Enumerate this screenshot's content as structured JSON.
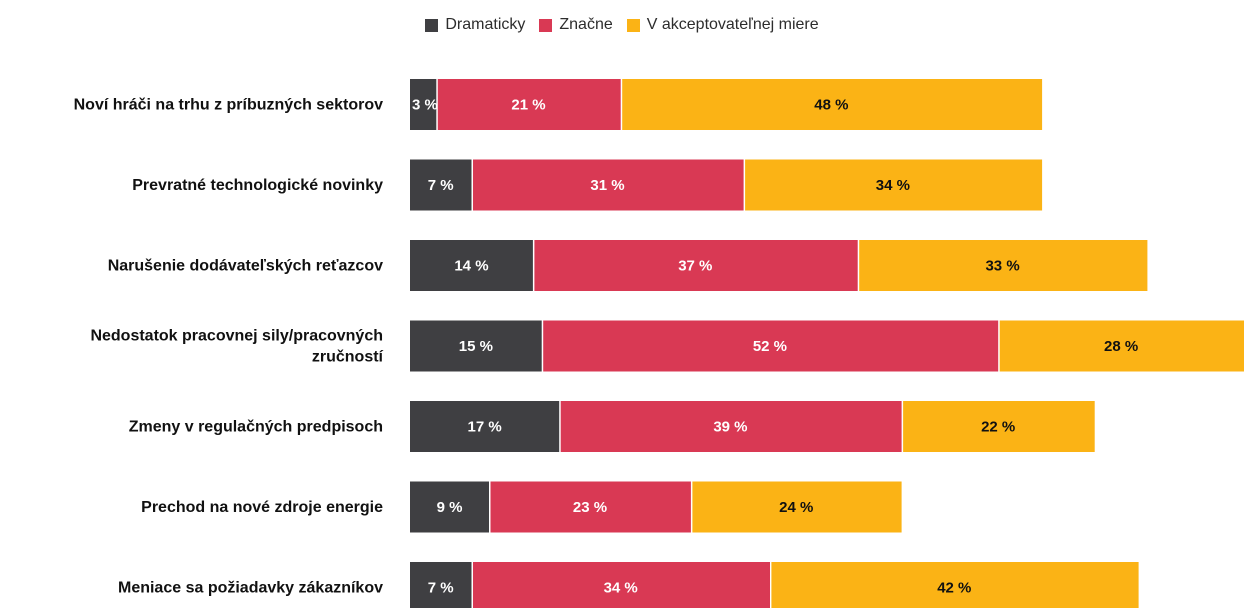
{
  "chart_data": {
    "type": "bar",
    "orientation": "horizontal",
    "stacked": true,
    "legend_position": "top",
    "grid": false,
    "categories": [
      [
        "Noví hráči na trhu z príbuzných sektorov"
      ],
      [
        "Prevratné technologické novinky"
      ],
      [
        "Narušenie dodávateľských reťazcov"
      ],
      [
        "Nedostatok pracovnej sily/pracovných",
        "zručností"
      ],
      [
        "Zmeny v regulačných predpisoch"
      ],
      [
        "Prechod na nové zdroje energie"
      ],
      [
        "Meniace sa požiadavky zákazníkov"
      ]
    ],
    "series": [
      {
        "name": "Dramaticky",
        "color": "#3f3f42",
        "text_color": "#ffffff",
        "values": [
          3,
          7,
          14,
          15,
          17,
          9,
          7
        ]
      },
      {
        "name": "Značne",
        "color": "#d93954",
        "text_color": "#ffffff",
        "values": [
          21,
          31,
          37,
          52,
          39,
          23,
          34
        ]
      },
      {
        "name": "V akceptovateľnej miere",
        "color": "#fbb315",
        "text_color": "#111111",
        "values": [
          48,
          34,
          33,
          28,
          22,
          24,
          42
        ]
      }
    ],
    "value_suffix": " %",
    "xlim": [
      0,
      95
    ]
  }
}
